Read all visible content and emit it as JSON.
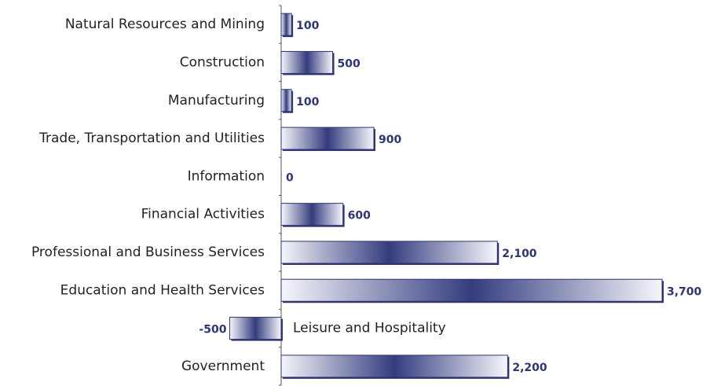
{
  "chart_data": {
    "type": "barh",
    "categories": [
      "Natural Resources and Mining",
      "Construction",
      "Manufacturing",
      "Trade, Transportation and Utilities",
      "Information",
      "Financial Activities",
      "Professional and Business Services",
      "Education and Health Services",
      "Leisure and Hospitality",
      "Government"
    ],
    "values": [
      100,
      500,
      100,
      900,
      0,
      600,
      2100,
      3700,
      -500,
      2200
    ],
    "value_labels": [
      "100",
      "500",
      "100",
      "900",
      "0",
      "600",
      "2,100",
      "3,700",
      "-500",
      "2,200"
    ],
    "color": "#2e3570"
  }
}
